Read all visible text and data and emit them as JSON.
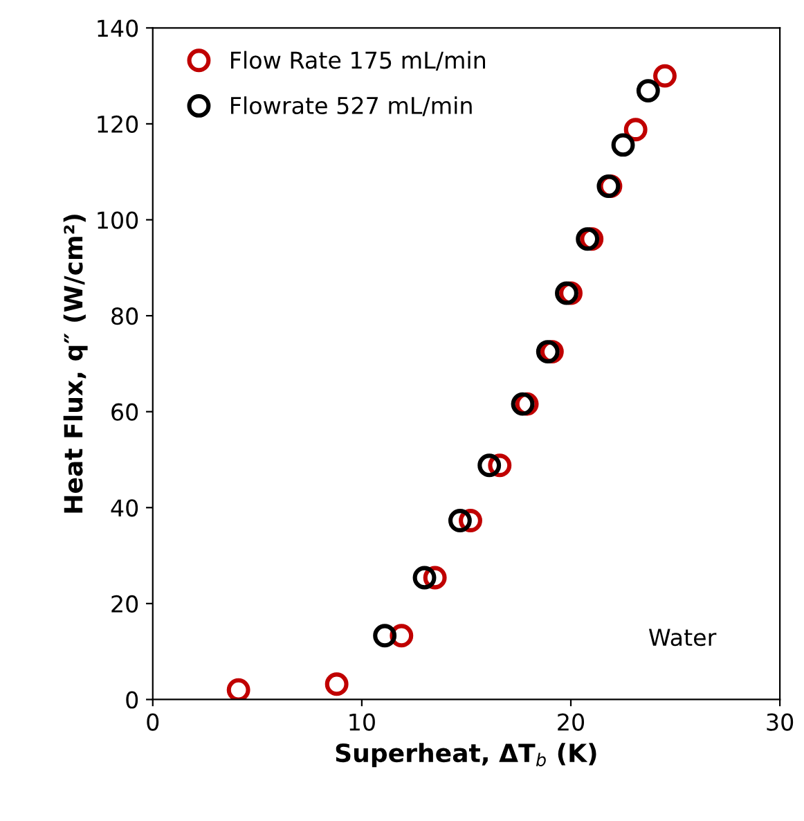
{
  "chart_data": {
    "type": "scatter",
    "xlabel": "Superheat, ΔT$_{b}$ (K)",
    "ylabel": "Heat Flux, q″ (W/cm²)",
    "xlim": [
      0,
      30
    ],
    "ylim": [
      0,
      140
    ],
    "xticks": [
      0,
      10,
      20,
      30
    ],
    "yticks": [
      0,
      20,
      40,
      60,
      80,
      100,
      120,
      140
    ],
    "grid": false,
    "legend": "top left",
    "marker": "circle",
    "annotations": [
      "Water"
    ],
    "series": [
      {
        "name": "Flow Rate 175 mL/min",
        "color": "#c00000",
        "x": [
          4.1,
          8.8,
          11.9,
          13.5,
          15.2,
          16.6,
          17.9,
          19.1,
          20.0,
          21.0,
          21.9,
          23.1,
          24.5
        ],
        "values": [
          2.0,
          3.2,
          13.3,
          25.4,
          37.3,
          48.8,
          61.6,
          72.5,
          84.7,
          96.0,
          107.0,
          118.8,
          130.0
        ]
      },
      {
        "name": "Flowrate 527 mL/min",
        "color": "#000000",
        "x": [
          11.1,
          13.0,
          14.7,
          16.1,
          17.7,
          18.9,
          19.8,
          20.8,
          21.8,
          22.5,
          23.7
        ],
        "values": [
          13.3,
          25.4,
          37.3,
          48.8,
          61.6,
          72.5,
          84.7,
          96.0,
          107.0,
          115.6,
          126.9
        ]
      }
    ]
  }
}
